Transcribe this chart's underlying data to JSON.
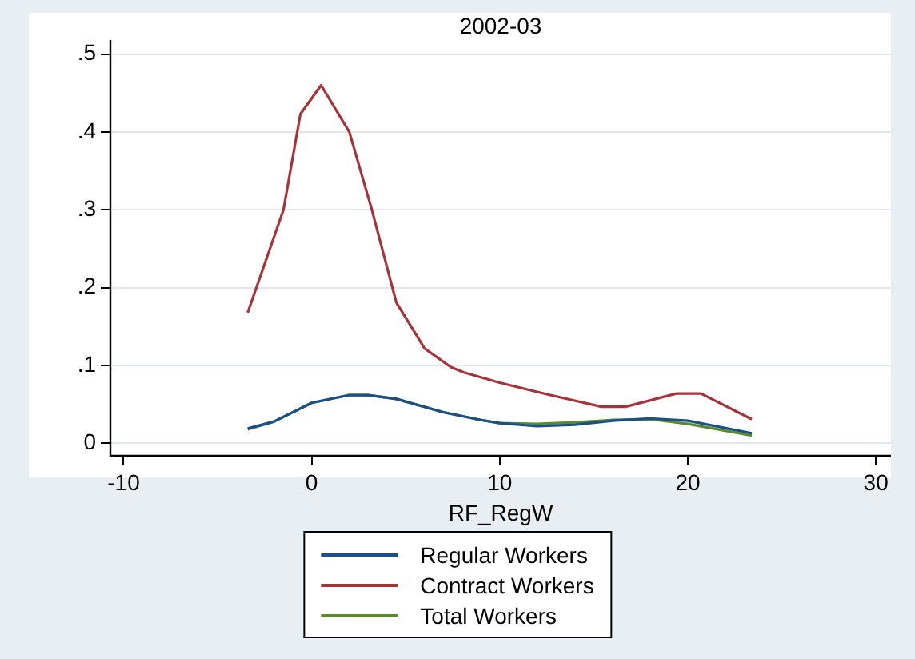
{
  "chart_data": {
    "type": "line",
    "title": "2002-03",
    "xlabel": "RF_RegW",
    "x": [
      -3.4,
      -1.5,
      -0.6,
      0.5,
      2,
      3.2,
      4.5,
      6,
      7.4,
      8.1,
      10,
      12.5,
      15.4,
      16.7,
      19.4,
      20.7,
      23.4
    ],
    "xlim": [
      -10.7,
      30.8
    ],
    "xticks": [
      -10,
      0,
      10,
      20,
      30
    ],
    "ylim": [
      -0.016,
      0.518
    ],
    "yticks": [
      {
        "value": 0,
        "label": "0"
      },
      {
        "value": 0.1,
        "label": ".1"
      },
      {
        "value": 0.2,
        "label": ".2"
      },
      {
        "value": 0.3,
        "label": ".3"
      },
      {
        "value": 0.4,
        "label": ".4"
      },
      {
        "value": 0.5,
        "label": ".5"
      }
    ],
    "grid": "y",
    "legend": "bottom",
    "marker": "none",
    "line_style": "solid",
    "series": [
      {
        "name": "Regular Workers",
        "color": "#1a4f8a",
        "x": [
          -3.4,
          -2,
          0,
          2,
          3,
          4.5,
          7,
          9,
          10,
          12,
          14,
          16,
          18,
          20,
          23.4
        ],
        "values": [
          0.019,
          0.028,
          0.052,
          0.062,
          0.062,
          0.057,
          0.04,
          0.03,
          0.026,
          0.022,
          0.024,
          0.029,
          0.032,
          0.029,
          0.013
        ]
      },
      {
        "name": "Contract Workers",
        "color": "#a8323a",
        "values": [
          0.168,
          0.3,
          0.423,
          0.46,
          0.4,
          0.3,
          0.181,
          0.122,
          0.098,
          0.091,
          0.078,
          0.063,
          0.047,
          0.047,
          0.064,
          0.064,
          0.031
        ]
      },
      {
        "name": "Total Workers",
        "color": "#5a8a2a",
        "x": [
          -3.4,
          -2,
          0,
          2,
          3,
          4.5,
          7,
          9,
          10,
          12,
          14,
          16,
          18,
          20,
          23.4
        ],
        "values": [
          0.018,
          0.028,
          0.052,
          0.062,
          0.062,
          0.057,
          0.04,
          0.03,
          0.026,
          0.025,
          0.027,
          0.03,
          0.031,
          0.025,
          0.01
        ]
      }
    ]
  }
}
